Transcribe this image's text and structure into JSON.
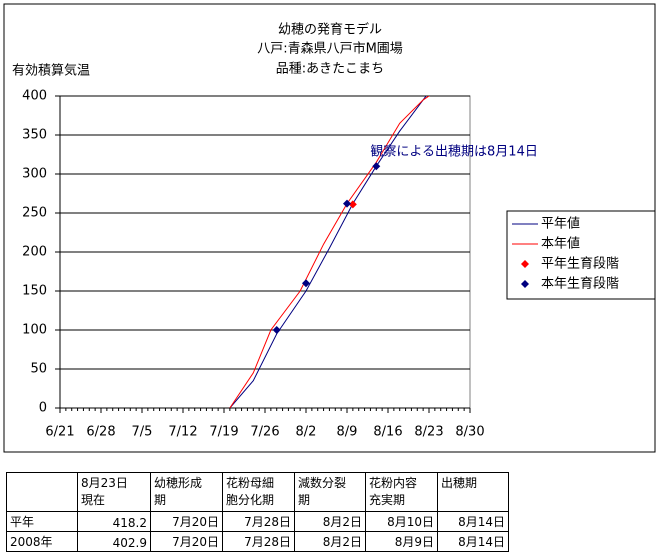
{
  "chart_data": {
    "type": "line",
    "title": [
      "幼穂の発育モデル",
      "八戸:青森県八戸市M圃場",
      "品種:あきたこまち"
    ],
    "ylabel": "有効積算気温",
    "annotation": {
      "text": "観察による出穂期は8月14日",
      "color": "#000080",
      "x": "8/13",
      "y": 318
    },
    "xlim": [
      "6/21",
      "8/30"
    ],
    "xticks": [
      "6/21",
      "6/28",
      "7/5",
      "7/12",
      "7/19",
      "7/26",
      "8/2",
      "8/9",
      "8/16",
      "8/23",
      "8/30"
    ],
    "ylim": [
      0,
      400
    ],
    "yticks": [
      0,
      50,
      100,
      150,
      200,
      250,
      300,
      350,
      400
    ],
    "grid": true,
    "legend": "right",
    "series": [
      {
        "name": "平年値",
        "color": "#000080",
        "type": "line",
        "x": [
          "7/20",
          "7/24",
          "7/28",
          "8/2",
          "8/6",
          "8/10",
          "8/14",
          "8/18",
          "8/23"
        ],
        "values": [
          0,
          35,
          95,
          150,
          205,
          262,
          310,
          355,
          405
        ]
      },
      {
        "name": "本年値",
        "color": "#ff0000",
        "type": "line",
        "x": [
          "7/20",
          "7/24",
          "7/27",
          "8/1",
          "8/5",
          "8/9",
          "8/14",
          "8/18",
          "8/22",
          "8/24"
        ],
        "values": [
          0,
          45,
          100,
          150,
          210,
          262,
          315,
          365,
          395,
          405
        ]
      },
      {
        "name": "平年生育段階",
        "color": "#ff0000",
        "type": "scatter",
        "x": [
          "8/10"
        ],
        "values": [
          261
        ]
      },
      {
        "name": "本年生育段階",
        "color": "#000080",
        "type": "scatter",
        "x": [
          "7/28",
          "8/2",
          "8/9",
          "8/14"
        ],
        "values": [
          100,
          160,
          262,
          310
        ]
      }
    ]
  },
  "table": {
    "header": [
      [],
      [
        "8月23日",
        "現在"
      ],
      [
        "幼穂形成",
        "期"
      ],
      [
        "花粉母細",
        "胞分化期"
      ],
      [
        "減数分裂",
        "期"
      ],
      [
        "花粉内容",
        "充実期"
      ],
      [
        "出穂期"
      ]
    ],
    "rows": [
      [
        "平年",
        418.2,
        "7月20日",
        "7月28日",
        "8月2日",
        "8月10日",
        "8月14日"
      ],
      [
        "2008年",
        402.9,
        "7月20日",
        "7月28日",
        "8月2日",
        "8月9日",
        "8月14日"
      ]
    ]
  }
}
